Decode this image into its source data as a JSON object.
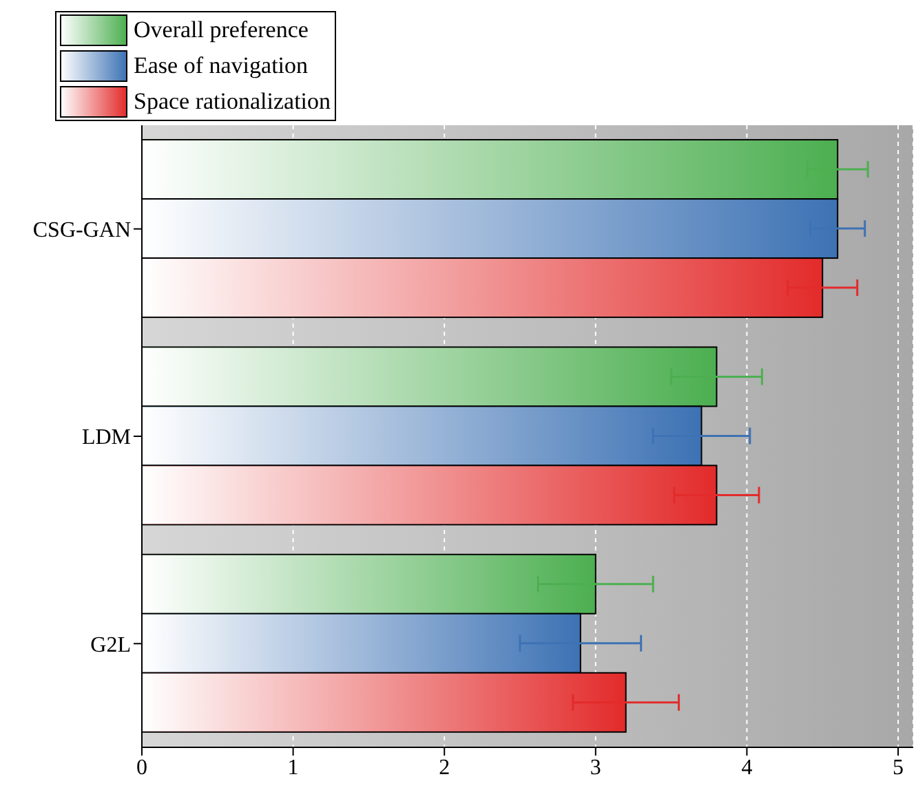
{
  "chart_data": {
    "type": "bar",
    "orientation": "horizontal",
    "categories": [
      "CSG-GAN",
      "LDM",
      "G2L"
    ],
    "series": [
      {
        "name": "Overall preference",
        "color": "#4caf50",
        "values": [
          4.6,
          3.8,
          3.0
        ],
        "errors": [
          0.2,
          0.3,
          0.38
        ]
      },
      {
        "name": "Ease of navigation",
        "color": "#3d72b4",
        "values": [
          4.6,
          3.7,
          2.9
        ],
        "errors": [
          0.18,
          0.32,
          0.4
        ]
      },
      {
        "name": "Space rationalization",
        "color": "#e32b2b",
        "values": [
          4.5,
          3.8,
          3.2
        ],
        "errors": [
          0.23,
          0.28,
          0.35
        ]
      }
    ],
    "xlim": [
      0,
      5.1
    ],
    "xticks": [
      0,
      1,
      2,
      3,
      4,
      5
    ],
    "grid": "x",
    "legend": "top left"
  }
}
